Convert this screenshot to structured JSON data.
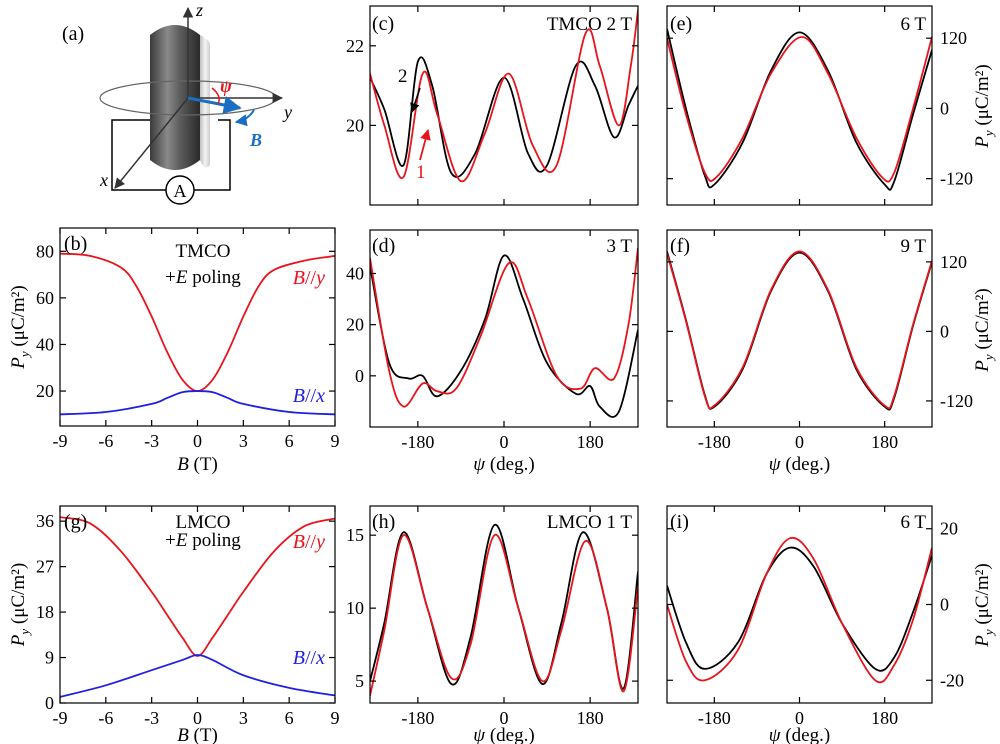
{
  "panel_a": {
    "label": "(a)",
    "axis_z": "z",
    "axis_y": "y",
    "axis_x": "x",
    "angle_label": "ψ",
    "field_label": "B",
    "meter_label": "A"
  },
  "colors": {
    "black": "#000000",
    "red": "#e8141c",
    "blue": "#1f1fe0",
    "field_blue": "#1a6fc2"
  },
  "chart_data": [
    {
      "id": "b",
      "type": "line",
      "panel_label": "(b)",
      "annotations": [
        "TMCO",
        "+E poling"
      ],
      "xlabel": "B (T)",
      "ylabel": "P_y (μC/m²)",
      "xlim": [
        -9,
        9
      ],
      "ylim": [
        5,
        90
      ],
      "xticks": [
        -9,
        -6,
        -3,
        0,
        3,
        6,
        9
      ],
      "yticks": [
        20,
        40,
        60,
        80
      ],
      "series": [
        {
          "name": "B//y",
          "color": "red",
          "x": [
            -9,
            -7,
            -5,
            -4,
            -3,
            -2,
            -1,
            0,
            1,
            2,
            3,
            4,
            5,
            7,
            9
          ],
          "y": [
            79,
            78,
            73,
            65,
            52,
            37,
            25,
            20,
            25,
            37,
            52,
            65,
            72,
            76,
            78
          ]
        },
        {
          "name": "B//x",
          "color": "blue",
          "x": [
            -9,
            -6,
            -3,
            -2,
            -1,
            0,
            1,
            2,
            3,
            6,
            9
          ],
          "y": [
            10,
            11,
            14.5,
            17,
            19.5,
            20,
            19.5,
            17,
            14.5,
            11,
            10
          ]
        }
      ]
    },
    {
      "id": "c",
      "type": "line",
      "panel_label": "(c)",
      "annotations": [
        "TMCO 2 T"
      ],
      "arrow_labels": [
        "2",
        "1"
      ],
      "xlim": [
        -280,
        280
      ],
      "ylim": [
        18,
        23
      ],
      "xticks": [
        -180,
        0,
        180
      ],
      "yticks": [
        20,
        22
      ],
      "series": [
        {
          "name": "",
          "color": "black",
          "x": [
            -280,
            -250,
            -210,
            -180,
            -150,
            -110,
            -60,
            0,
            50,
            90,
            150,
            190,
            230,
            260,
            280
          ],
          "y": [
            21.2,
            20.4,
            19.0,
            21.6,
            21.0,
            18.8,
            19.3,
            21.2,
            19.3,
            19.0,
            21.5,
            21.0,
            19.7,
            20.5,
            21.0
          ]
        },
        {
          "name": "",
          "color": "red",
          "x": [
            -280,
            -250,
            -210,
            -170,
            -140,
            -90,
            -40,
            10,
            60,
            110,
            170,
            200,
            240,
            265,
            280
          ],
          "y": [
            21.3,
            20.0,
            18.7,
            21.3,
            20.3,
            18.6,
            19.8,
            21.3,
            19.5,
            19.0,
            22.3,
            21.5,
            20.0,
            21.5,
            22.9
          ]
        }
      ]
    },
    {
      "id": "d",
      "type": "line",
      "panel_label": "(d)",
      "annotations": [
        "3 T"
      ],
      "xlabel": "ψ (deg.)",
      "xlim": [
        -280,
        280
      ],
      "ylim": [
        -20,
        57
      ],
      "xticks": [
        -180,
        0,
        180
      ],
      "yticks": [
        0,
        20,
        40
      ],
      "series": [
        {
          "name": "",
          "color": "black",
          "x": [
            -280,
            -240,
            -200,
            -170,
            -140,
            -90,
            -40,
            0,
            40,
            90,
            150,
            180,
            200,
            240,
            280
          ],
          "y": [
            43,
            5,
            -1,
            0,
            -8,
            2,
            22,
            47,
            30,
            5,
            -7,
            -4,
            -12,
            -14,
            18
          ]
        },
        {
          "name": "",
          "color": "red",
          "x": [
            -280,
            -240,
            -210,
            -170,
            -140,
            -100,
            -50,
            10,
            50,
            110,
            160,
            190,
            230,
            260,
            280
          ],
          "y": [
            46,
            2,
            -12,
            -3,
            -6,
            -5,
            15,
            44,
            30,
            0,
            -5,
            3,
            -1,
            20,
            50
          ]
        }
      ]
    },
    {
      "id": "e",
      "type": "line",
      "panel_label": "(e)",
      "annotations": [
        "6 T"
      ],
      "xlim": [
        -280,
        280
      ],
      "ylim": [
        -165,
        175
      ],
      "xticks": [
        -180,
        0,
        180
      ],
      "yticks": [
        -120,
        0,
        120
      ],
      "ylabel": "P_y (μC/m²)",
      "series": [
        {
          "name": "",
          "color": "black",
          "x": [
            -280,
            -240,
            -200,
            -180,
            -120,
            -60,
            0,
            60,
            120,
            180,
            200,
            240,
            280
          ],
          "y": [
            136,
            0,
            -115,
            -130,
            -58,
            65,
            130,
            65,
            -58,
            -130,
            -125,
            -10,
            100
          ]
        },
        {
          "name": "",
          "color": "red",
          "x": [
            -280,
            -240,
            -200,
            -175,
            -120,
            -60,
            5,
            60,
            120,
            175,
            200,
            240,
            280
          ],
          "y": [
            120,
            -10,
            -110,
            -117,
            -50,
            60,
            122,
            60,
            -50,
            -118,
            -110,
            0,
            122
          ]
        }
      ]
    },
    {
      "id": "f",
      "type": "line",
      "panel_label": "(f)",
      "annotations": [
        "9 T"
      ],
      "xlabel": "ψ (deg.)",
      "xlim": [
        -280,
        280
      ],
      "ylim": [
        -165,
        175
      ],
      "xticks": [
        -180,
        0,
        180
      ],
      "yticks": [
        -120,
        0,
        120
      ],
      "ylabel": "P_y (μC/m²)",
      "series": [
        {
          "name": "",
          "color": "black",
          "x": [
            -280,
            -240,
            -200,
            -180,
            -120,
            -60,
            0,
            60,
            120,
            180,
            200,
            240,
            280
          ],
          "y": [
            138,
            20,
            -110,
            -130,
            -65,
            70,
            136,
            70,
            -65,
            -130,
            -115,
            10,
            120
          ]
        },
        {
          "name": "",
          "color": "red",
          "x": [
            -280,
            -240,
            -200,
            -180,
            -120,
            -60,
            0,
            60,
            120,
            180,
            200,
            240,
            280
          ],
          "y": [
            135,
            18,
            -112,
            -128,
            -62,
            72,
            138,
            72,
            -62,
            -128,
            -112,
            12,
            122
          ]
        }
      ]
    },
    {
      "id": "g",
      "type": "line",
      "panel_label": "(g)",
      "annotations": [
        "LMCO",
        "+E poling"
      ],
      "xlabel": "B (T)",
      "ylabel": "P_y (μC/m²)",
      "xlim": [
        -9,
        9
      ],
      "ylim": [
        0,
        39
      ],
      "xticks": [
        -9,
        -6,
        -3,
        0,
        3,
        6,
        9
      ],
      "yticks": [
        0,
        9,
        18,
        27,
        36
      ],
      "series": [
        {
          "name": "B//y",
          "color": "red",
          "x": [
            -9,
            -7,
            -5,
            -3,
            -2,
            -1,
            0,
            1,
            2,
            3,
            5,
            7,
            9
          ],
          "y": [
            36.8,
            35.5,
            30,
            22,
            17.5,
            13,
            9.3,
            13,
            17.5,
            22,
            30,
            35,
            36.5
          ]
        },
        {
          "name": "B//x",
          "color": "blue",
          "x": [
            -9,
            -6,
            -3,
            -1,
            0,
            1,
            3,
            6,
            9
          ],
          "y": [
            1.2,
            3.5,
            6.5,
            8.5,
            9.5,
            8.5,
            5.5,
            3,
            1.5
          ]
        }
      ]
    },
    {
      "id": "h",
      "type": "line",
      "panel_label": "(h)",
      "annotations": [
        "LMCO 1 T"
      ],
      "xlabel": "ψ (deg.)",
      "xlim": [
        -280,
        280
      ],
      "ylim": [
        3.5,
        17
      ],
      "xticks": [
        -180,
        0,
        180
      ],
      "yticks": [
        5,
        10,
        15
      ],
      "series": [
        {
          "name": "",
          "color": "black",
          "x": [
            -280,
            -250,
            -210,
            -160,
            -110,
            -70,
            -20,
            30,
            80,
            120,
            165,
            215,
            250,
            280
          ],
          "y": [
            5,
            9,
            15.2,
            10,
            4.8,
            8,
            15.7,
            10,
            4.8,
            9,
            15.2,
            10,
            4.5,
            12.5
          ]
        },
        {
          "name": "",
          "color": "red",
          "x": [
            -280,
            -250,
            -210,
            -160,
            -110,
            -70,
            -20,
            30,
            80,
            120,
            170,
            215,
            250,
            280
          ],
          "y": [
            4,
            8.5,
            15,
            10,
            5.2,
            7.5,
            15,
            10,
            5,
            8.5,
            14.6,
            10,
            4.3,
            11.5
          ]
        }
      ]
    },
    {
      "id": "i",
      "type": "line",
      "panel_label": "(i)",
      "annotations": [
        "6 T"
      ],
      "xlabel": "ψ (deg.)",
      "xlim": [
        -280,
        280
      ],
      "ylim": [
        -26,
        26
      ],
      "xticks": [
        -180,
        0,
        180
      ],
      "yticks": [
        -20,
        0,
        20
      ],
      "ylabel": "P_y (μC/m²)",
      "series": [
        {
          "name": "",
          "color": "black",
          "x": [
            -280,
            -240,
            -200,
            -130,
            -70,
            -20,
            30,
            90,
            160,
            200,
            240,
            280
          ],
          "y": [
            5,
            -10,
            -17,
            -10,
            8,
            15,
            10,
            -5,
            -17,
            -14,
            -2,
            13
          ]
        },
        {
          "name": "",
          "color": "red",
          "x": [
            -280,
            -240,
            -200,
            -130,
            -70,
            -20,
            30,
            90,
            160,
            200,
            240,
            280
          ],
          "y": [
            0,
            -15,
            -20,
            -12,
            8,
            17.5,
            12,
            -5,
            -20,
            -16,
            -4,
            15
          ]
        }
      ]
    }
  ]
}
